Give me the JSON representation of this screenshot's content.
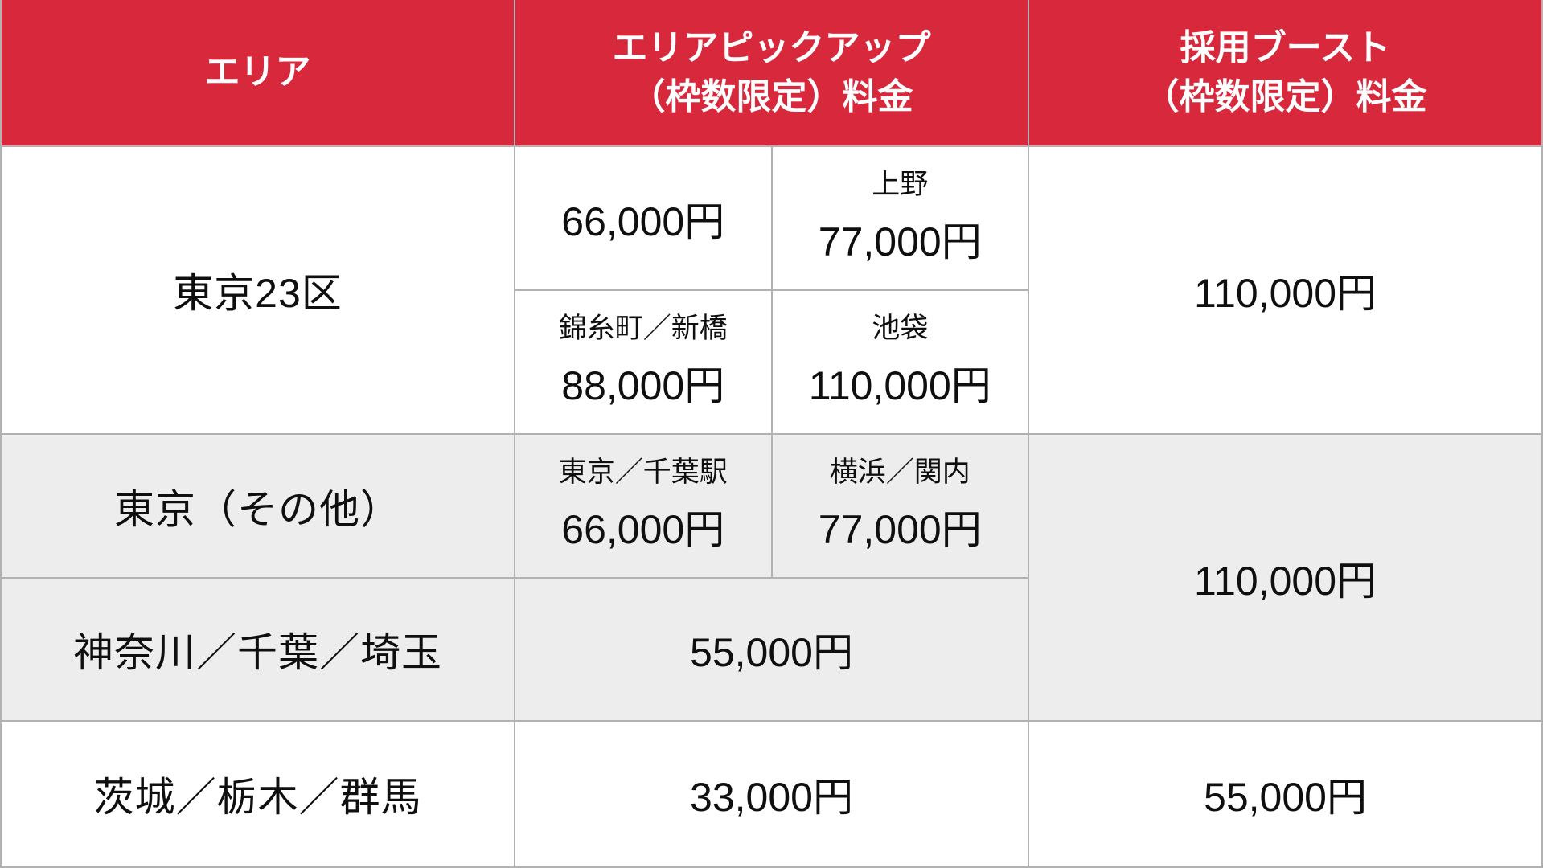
{
  "colors": {
    "header_bg": "#d8293c",
    "header_text": "#ffffff",
    "row_alt_bg": "#ededed",
    "grid_line": "#b2b2b2",
    "body_text": "#0f0f0f"
  },
  "header": {
    "area": "エリア",
    "pickup": "エリアピックアップ\n（枠数限定）料金",
    "boost": "採用ブースト\n（枠数限定）料金"
  },
  "cells": {
    "r1_area": "東京23区",
    "r1_pickup_base_price": "66,000円",
    "r1_pickup_ueno_label": "上野",
    "r1_pickup_ueno_price": "77,000円",
    "r1_pickup_kinshicho_label": "錦糸町／新橋",
    "r1_pickup_kinshicho_price": "88,000円",
    "r1_pickup_ikebukuro_label": "池袋",
    "r1_pickup_ikebukuro_price": "110,000円",
    "r1_boost": "110,000円",
    "r2_area": "東京（その他）",
    "r2_pickup_tokyo_chiba_label": "東京／千葉駅",
    "r2_pickup_tokyo_chiba_price": "66,000円",
    "r2_pickup_yokohama_kannai_label": "横浜／関内",
    "r2_pickup_yokohama_kannai_price": "77,000円",
    "r23_boost": "110,000円",
    "r3_area": "神奈川／千葉／埼玉",
    "r3_pickup": "55,000円",
    "r4_area": "茨城／栃木／群馬",
    "r4_pickup": "33,000円",
    "r4_boost": "55,000円"
  },
  "chart_data": {
    "type": "table",
    "columns": [
      "エリア",
      "エリアピックアップ（枠数限定）料金",
      "採用ブースト（枠数限定）料金"
    ],
    "rows": [
      {
        "area": "東京23区",
        "pickup": [
          {
            "station": null,
            "price_jpy": 66000,
            "display": "66,000円"
          },
          {
            "station": "上野",
            "price_jpy": 77000,
            "display": "77,000円"
          },
          {
            "station": "錦糸町／新橋",
            "price_jpy": 88000,
            "display": "88,000円"
          },
          {
            "station": "池袋",
            "price_jpy": 110000,
            "display": "110,000円"
          }
        ],
        "boost_jpy": 110000,
        "boost_display": "110,000円"
      },
      {
        "area": "東京（その他）",
        "pickup": [
          {
            "station": "東京／千葉駅",
            "price_jpy": 66000,
            "display": "66,000円"
          },
          {
            "station": "横浜／関内",
            "price_jpy": 77000,
            "display": "77,000円"
          }
        ],
        "boost_jpy": 110000,
        "boost_display": "110,000円",
        "boost_merged_with_next_row": true
      },
      {
        "area": "神奈川／千葉／埼玉",
        "pickup": [
          {
            "station": null,
            "price_jpy": 55000,
            "display": "55,000円"
          }
        ],
        "boost_jpy": 110000,
        "boost_display": "110,000円",
        "boost_merged_with_previous_row": true
      },
      {
        "area": "茨城／栃木／群馬",
        "pickup": [
          {
            "station": null,
            "price_jpy": 33000,
            "display": "33,000円"
          }
        ],
        "boost_jpy": 55000,
        "boost_display": "55,000円"
      }
    ],
    "layout_hints": {
      "header_row_color": "#d8293c",
      "alternating_gray_rows": [
        "東京（その他）",
        "神奈川／千葉／埼玉"
      ],
      "grid": "3 equal columns; pickup column subdivided per station"
    }
  }
}
